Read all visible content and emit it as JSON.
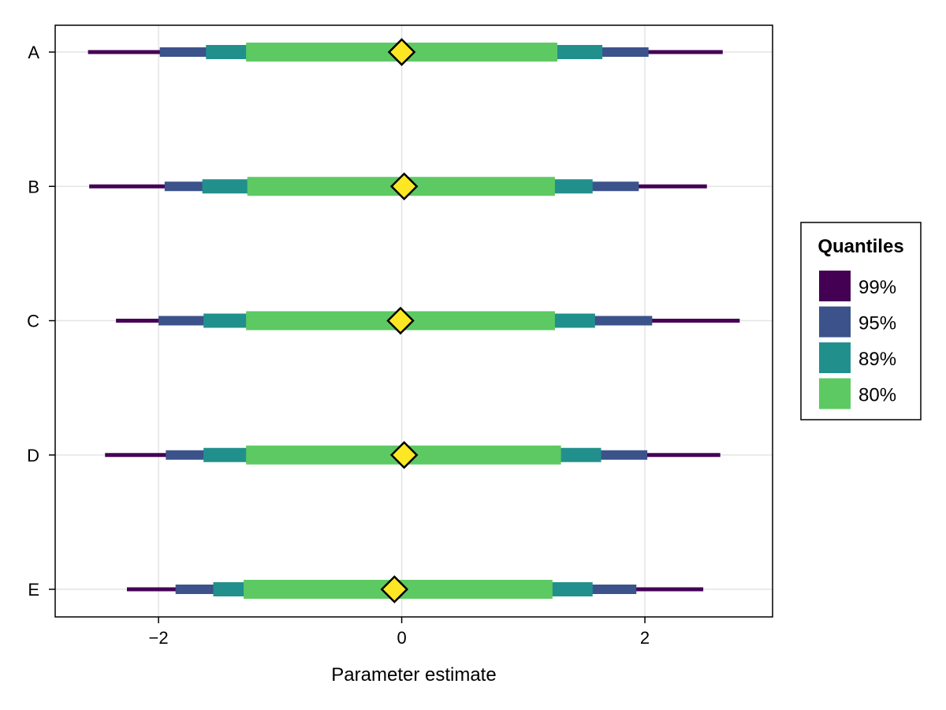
{
  "chart_data": {
    "type": "forest-interval",
    "xlabel": "Parameter estimate",
    "ylabel": "",
    "title": "",
    "categories": [
      "A",
      "B",
      "C",
      "D",
      "E"
    ],
    "xlim": [
      -2.85,
      3.05
    ],
    "xticks": [
      -2,
      0,
      2
    ],
    "xtick_labels": [
      "−2",
      "0",
      "2"
    ],
    "grid": true,
    "legend": {
      "title": "Quantiles",
      "placement": "right",
      "entries": [
        {
          "label": "99%",
          "color": "#440154"
        },
        {
          "label": "95%",
          "color": "#3b528b"
        },
        {
          "label": "89%",
          "color": "#21908d"
        },
        {
          "label": "80%",
          "color": "#5dc963"
        }
      ]
    },
    "series": [
      {
        "name": "99%",
        "color": "#440154",
        "intervals": [
          [
            -2.58,
            2.64
          ],
          [
            -2.57,
            2.51
          ],
          [
            -2.35,
            2.78
          ],
          [
            -2.44,
            2.62
          ],
          [
            -2.26,
            2.48
          ]
        ]
      },
      {
        "name": "95%",
        "color": "#3b528b",
        "intervals": [
          [
            -1.99,
            2.03
          ],
          [
            -1.95,
            1.95
          ],
          [
            -2.0,
            2.06
          ],
          [
            -1.94,
            2.02
          ],
          [
            -1.86,
            1.93
          ]
        ]
      },
      {
        "name": "89%",
        "color": "#21908d",
        "intervals": [
          [
            -1.61,
            1.65
          ],
          [
            -1.64,
            1.57
          ],
          [
            -1.63,
            1.59
          ],
          [
            -1.63,
            1.64
          ],
          [
            -1.55,
            1.57
          ]
        ]
      },
      {
        "name": "80%",
        "color": "#5dc963",
        "intervals": [
          [
            -1.28,
            1.28
          ],
          [
            -1.27,
            1.26
          ],
          [
            -1.28,
            1.26
          ],
          [
            -1.28,
            1.31
          ],
          [
            -1.3,
            1.24
          ]
        ]
      }
    ],
    "estimates": [
      0.0,
      0.02,
      -0.01,
      0.02,
      -0.06
    ],
    "estimate_color": "#fde725"
  }
}
